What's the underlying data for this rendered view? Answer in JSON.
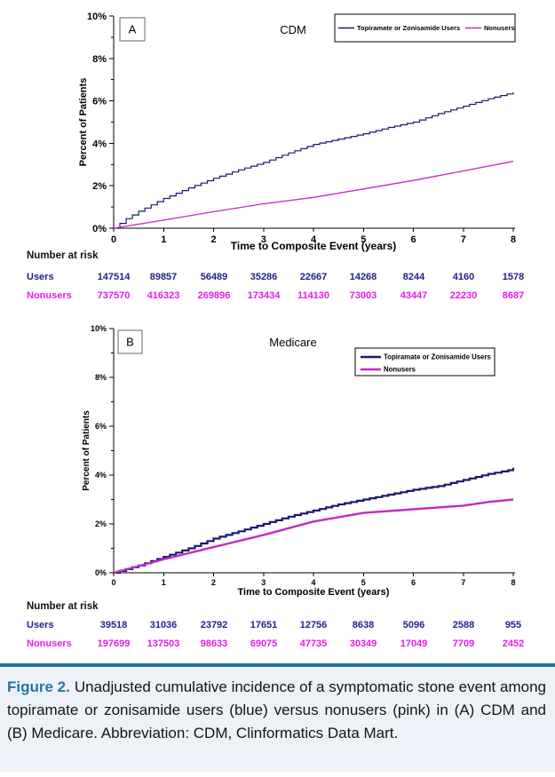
{
  "caption": {
    "label": "Figure 2.",
    "text": "Unadjusted cumulative incidence of a symptomatic stone event among topiramate or zonisamide users (blue) versus nonusers (pink) in (A) CDM and (B) Medicare. Abbreviation: CDM, Clinformatics Data Mart."
  },
  "colors": {
    "users_line": "#191970",
    "nonusers_line": "#c32ac3",
    "users_text": "#22228c",
    "nonusers_text": "#e51ce5",
    "caption_accent": "#2477a5",
    "caption_rule": "#1d7195",
    "caption_bg": "#eef1f8",
    "axis_text": "#000000"
  },
  "chart_data": [
    {
      "type": "line",
      "panel_label": "A",
      "title": "CDM",
      "xlabel": "Time to Composite Event (years)",
      "ylabel": "Percent of Patients",
      "xlim": [
        0,
        8
      ],
      "ylim": [
        0,
        10
      ],
      "xticks": [
        "0",
        "1",
        "2",
        "3",
        "4",
        "5",
        "6",
        "7",
        "8"
      ],
      "ytick_labels": [
        "0%",
        "2%",
        "4%",
        "6%",
        "8%",
        "10%"
      ],
      "grid": "off",
      "legend_position": "top-right single-row framed box inside plot",
      "series": [
        {
          "name": "Topiramate or Zonisamide Users",
          "color": "#191970",
          "x": [
            0,
            0.25,
            0.5,
            0.75,
            1,
            1.5,
            2,
            2.5,
            3,
            3.5,
            4,
            4.5,
            5,
            5.5,
            6,
            6.5,
            7,
            7.5,
            8
          ],
          "y": [
            0,
            0.45,
            0.8,
            1.1,
            1.4,
            1.9,
            2.35,
            2.75,
            3.1,
            3.55,
            3.95,
            4.2,
            4.45,
            4.75,
            5.0,
            5.4,
            5.75,
            6.1,
            6.4
          ]
        },
        {
          "name": "Nonusers",
          "color": "#c32ac3",
          "x": [
            0,
            1,
            2,
            3,
            4,
            5,
            6,
            7,
            8
          ],
          "y": [
            0,
            0.38,
            0.78,
            1.15,
            1.45,
            1.85,
            2.25,
            2.7,
            3.15
          ]
        }
      ]
    },
    {
      "type": "line",
      "panel_label": "B",
      "title": "Medicare",
      "xlabel": "Time to Composite Event (years)",
      "ylabel": "Percent of Patients",
      "xlim": [
        0,
        8
      ],
      "ylim": [
        0,
        10
      ],
      "xticks": [
        "0",
        "1",
        "2",
        "3",
        "4",
        "5",
        "6",
        "7",
        "8"
      ],
      "ytick_labels": [
        "0%",
        "2%",
        "4%",
        "6%",
        "8%",
        "10%"
      ],
      "grid": "off",
      "legend_position": "upper-right stacked framed box inside plot",
      "series": [
        {
          "name": "Topiramate or Zonisamide Users",
          "color": "#191970",
          "x": [
            0,
            0.5,
            1,
            1.5,
            2,
            2.5,
            3,
            3.5,
            4,
            4.5,
            5,
            5.5,
            6,
            6.5,
            7,
            7.5,
            7.9,
            8
          ],
          "y": [
            0,
            0.3,
            0.65,
            1.0,
            1.4,
            1.7,
            2.0,
            2.3,
            2.55,
            2.8,
            3.0,
            3.2,
            3.4,
            3.55,
            3.8,
            4.05,
            4.2,
            4.3
          ]
        },
        {
          "name": "Nonusers",
          "color": "#c32ac3",
          "x": [
            0,
            1,
            2,
            3,
            4,
            5,
            6,
            7,
            7.5,
            8
          ],
          "y": [
            0,
            0.55,
            1.05,
            1.55,
            2.1,
            2.45,
            2.6,
            2.75,
            2.9,
            3.0
          ]
        }
      ]
    }
  ],
  "risk_tables": [
    {
      "heading": "Number at risk",
      "rows": [
        {
          "label": "Users",
          "values": [
            "147514",
            "89857",
            "56489",
            "35286",
            "22667",
            "14268",
            "8244",
            "4160",
            "1578"
          ]
        },
        {
          "label": "Nonusers",
          "values": [
            "737570",
            "416323",
            "269896",
            "173434",
            "114130",
            "73003",
            "43447",
            "22230",
            "8687"
          ]
        }
      ]
    },
    {
      "heading": "Number at risk",
      "rows": [
        {
          "label": "Users",
          "values": [
            "39518",
            "31036",
            "23792",
            "17651",
            "12756",
            "8638",
            "5096",
            "2588",
            "955"
          ]
        },
        {
          "label": "Nonusers",
          "values": [
            "197699",
            "137503",
            "98633",
            "69075",
            "47735",
            "30349",
            "17049",
            "7709",
            "2452"
          ]
        }
      ]
    }
  ]
}
